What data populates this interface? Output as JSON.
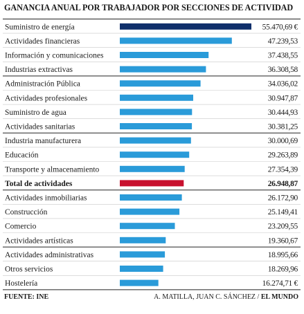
{
  "chart_data": {
    "type": "bar",
    "title": "GANANCIA ANUAL POR TRABAJADOR POR SECCIONES DE ACTIVIDAD",
    "categories": [
      "Suministro de energía",
      "Actividades financieras",
      "Información y comunicaciones",
      "Industrias extractivas",
      "Administración Pública",
      "Actividades profesionales",
      "Suministro de agua",
      "Actividades sanitarias",
      "Industria manufacturera",
      "Educación",
      "Transporte y almacenamiento",
      "Total de actividades",
      "Actividades inmobiliarias",
      "Construcción",
      "Comercio",
      "Actividades artísticas",
      "Actividades administrativas",
      "Otros servicios",
      "Hostelería"
    ],
    "values": [
      55470.69,
      47239.53,
      37438.55,
      36308.58,
      34036.02,
      30947.87,
      30444.93,
      30381.25,
      30000.69,
      29263.89,
      27354.39,
      26948.87,
      26172.9,
      25149.41,
      23209.55,
      19360.67,
      18995.66,
      18269.96,
      16274.71
    ],
    "value_labels": [
      "55.470,69 €",
      "47.239,53",
      "37.438,55",
      "36.308,58",
      "34.036,02",
      "30.947,87",
      "30.444,93",
      "30.381,25",
      "30.000,69",
      "29.263,89",
      "27.354,39",
      "26.948,87",
      "26.172,90",
      "25.149,41",
      "23.209,55",
      "19.360,67",
      "18.995,66",
      "18.269,96",
      "16.274,71 €"
    ],
    "groups": [
      4,
      4,
      4,
      4,
      3
    ],
    "highlight_index": 11,
    "colors": {
      "top": "#0f2f6b",
      "default": "#2a9bd9",
      "total": "#c8102e"
    }
  },
  "footer": {
    "source": "FUENTE: INE",
    "credit": "A. MATILLA, JUAN C. SÁNCHEZ / ",
    "paper": "EL MUNDO"
  }
}
